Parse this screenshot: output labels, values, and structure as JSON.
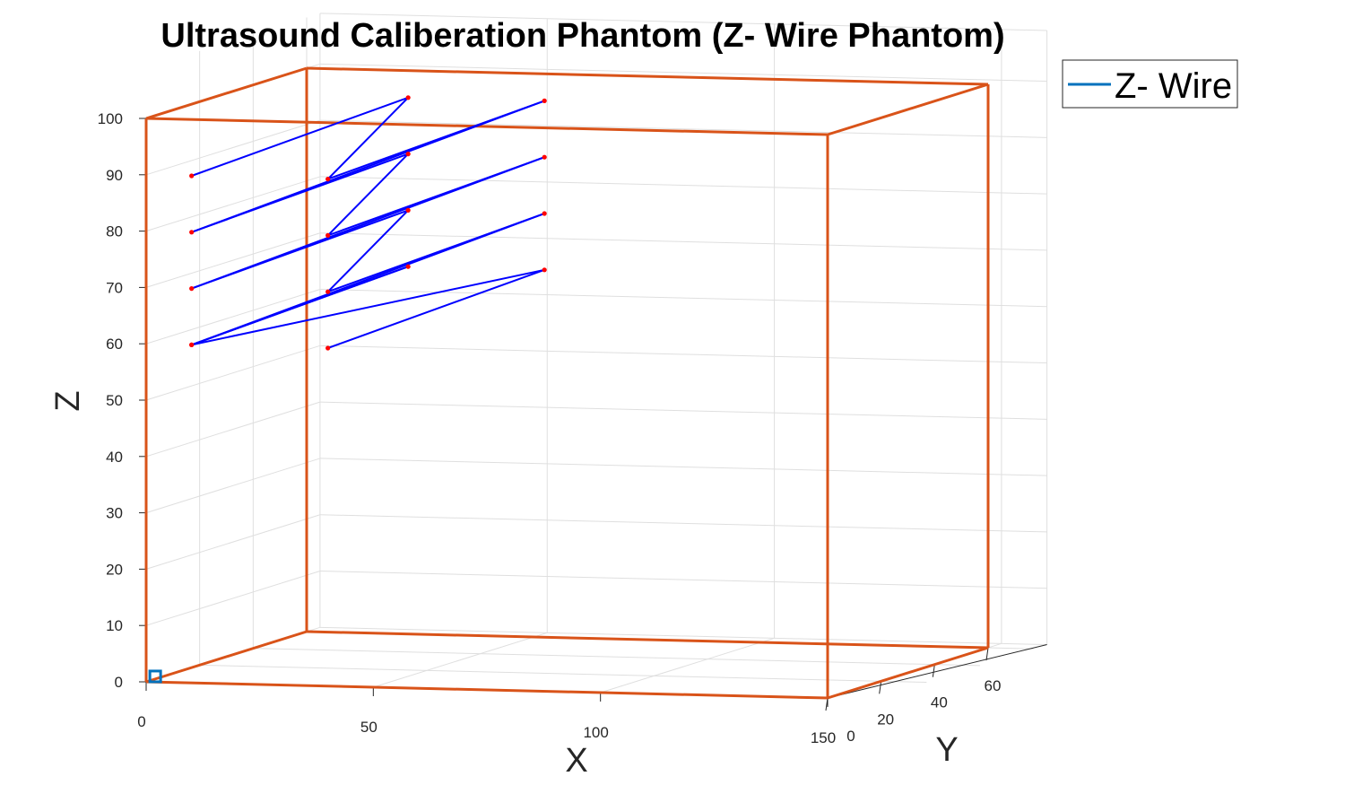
{
  "chart_data": {
    "type": "line",
    "title": "Ultrasound Caliberation Phantom (Z- Wire Phantom)",
    "xlabel": "X",
    "ylabel": "Y",
    "zlabel": "Z",
    "xlim": [
      0,
      150
    ],
    "ylim": [
      0,
      60
    ],
    "zlim": [
      0,
      100
    ],
    "x_ticks": [
      {
        "label": "0",
        "value": 0
      },
      {
        "label": "50",
        "value": 50
      },
      {
        "label": "100",
        "value": 100
      },
      {
        "label": "150",
        "value": 150
      }
    ],
    "y_ticks": [
      {
        "label": "0",
        "value": 0
      },
      {
        "label": "20",
        "value": 20
      },
      {
        "label": "40",
        "value": 40
      },
      {
        "label": "60",
        "value": 60
      }
    ],
    "z_ticks": [
      "0",
      "10",
      "20",
      "30",
      "40",
      "50",
      "60",
      "70",
      "80",
      "90",
      "100"
    ],
    "grid": true,
    "legend": {
      "position": "outside-top-right",
      "entries": [
        {
          "label": "Z- Wire",
          "color": "#0072BD"
        }
      ]
    },
    "series": [
      {
        "name": "Z- Wire",
        "color": "#0000ff",
        "marker_color": "#ff0000",
        "points": [
          {
            "x": 10,
            "y": 0,
            "z": 90
          },
          {
            "x": 40,
            "y": 30,
            "z": 100
          },
          {
            "x": 40,
            "y": 0,
            "z": 90
          },
          {
            "x": 70,
            "y": 30,
            "z": 100
          },
          {
            "x": 10,
            "y": 0,
            "z": 80
          },
          {
            "x": 40,
            "y": 30,
            "z": 90
          },
          {
            "x": 40,
            "y": 0,
            "z": 80
          },
          {
            "x": 70,
            "y": 30,
            "z": 90
          },
          {
            "x": 10,
            "y": 0,
            "z": 70
          },
          {
            "x": 40,
            "y": 30,
            "z": 80
          },
          {
            "x": 40,
            "y": 0,
            "z": 70
          },
          {
            "x": 70,
            "y": 30,
            "z": 80
          },
          {
            "x": 10,
            "y": 0,
            "z": 60
          },
          {
            "x": 40,
            "y": 30,
            "z": 70
          },
          {
            "x": 10,
            "y": 0,
            "z": 60
          },
          {
            "x": 70,
            "y": 30,
            "z": 70
          },
          {
            "x": 40,
            "y": 0,
            "z": 60
          }
        ]
      },
      {
        "name": "Box",
        "color": "#D95319",
        "edges": [
          [
            [
              0,
              0,
              0
            ],
            [
              150,
              0,
              0
            ]
          ],
          [
            [
              0,
              0,
              100
            ],
            [
              150,
              0,
              100
            ]
          ],
          [
            [
              0,
              60,
              0
            ],
            [
              150,
              60,
              0
            ]
          ],
          [
            [
              0,
              60,
              100
            ],
            [
              150,
              60,
              100
            ]
          ],
          [
            [
              0,
              0,
              0
            ],
            [
              0,
              60,
              0
            ]
          ],
          [
            [
              150,
              0,
              0
            ],
            [
              150,
              60,
              0
            ]
          ],
          [
            [
              0,
              0,
              100
            ],
            [
              0,
              60,
              100
            ]
          ],
          [
            [
              150,
              0,
              100
            ],
            [
              150,
              60,
              100
            ]
          ],
          [
            [
              0,
              0,
              0
            ],
            [
              0,
              0,
              100
            ]
          ],
          [
            [
              150,
              0,
              0
            ],
            [
              150,
              0,
              100
            ]
          ],
          [
            [
              0,
              60,
              0
            ],
            [
              0,
              60,
              100
            ]
          ],
          [
            [
              150,
              60,
              0
            ],
            [
              150,
              60,
              100
            ]
          ]
        ]
      }
    ],
    "origin_marker": {
      "x": 2,
      "y": 0,
      "z": 1,
      "color": "#0072BD"
    }
  }
}
